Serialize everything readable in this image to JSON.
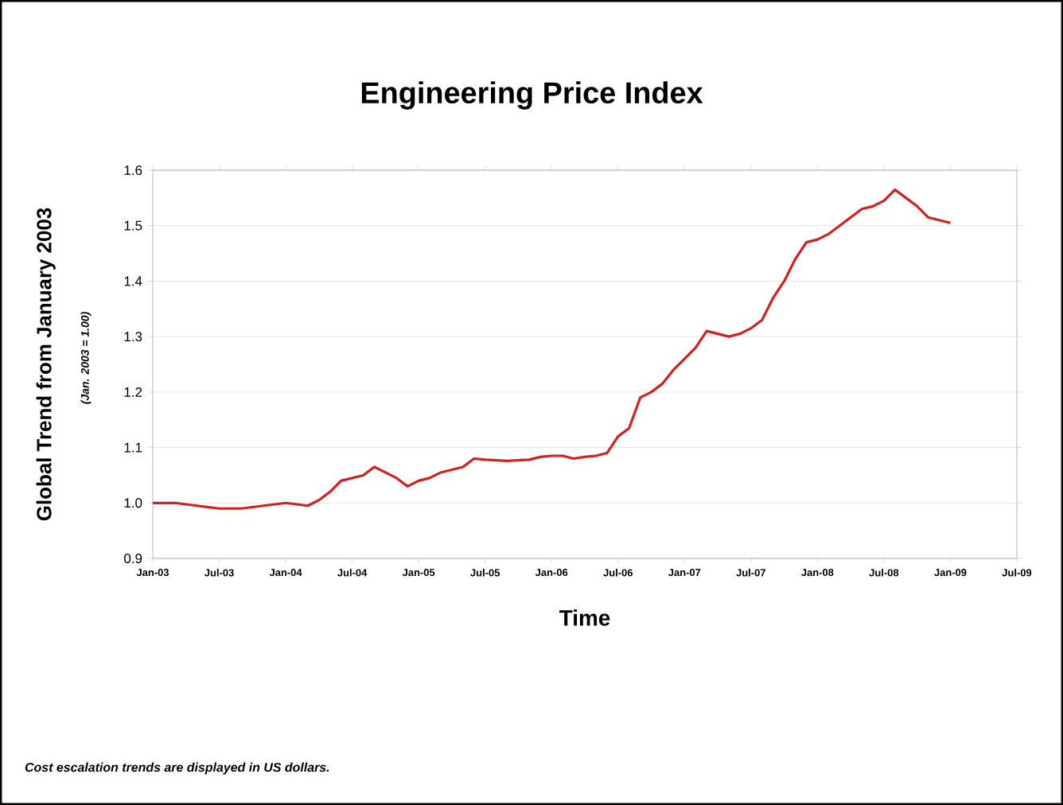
{
  "chart_data": {
    "type": "line",
    "title": "Engineering Price Index",
    "xlabel": "Time",
    "ylabel": "Global Trend from January 2003",
    "annotations": [
      "(Jan. 2003 = 1.00)",
      "Cost escalation trends are displayed in US dollars."
    ],
    "x": [
      "2003-01",
      "2003-03",
      "2003-05",
      "2003-07",
      "2003-09",
      "2003-11",
      "2004-01",
      "2004-03",
      "2004-04",
      "2004-05",
      "2004-06",
      "2004-07",
      "2004-08",
      "2004-09",
      "2004-10",
      "2004-11",
      "2004-12",
      "2005-01",
      "2005-02",
      "2005-03",
      "2005-04",
      "2005-05",
      "2005-06",
      "2005-07",
      "2005-09",
      "2005-11",
      "2005-12",
      "2006-01",
      "2006-02",
      "2006-03",
      "2006-04",
      "2006-05",
      "2006-06",
      "2006-07",
      "2006-08",
      "2006-09",
      "2006-10",
      "2006-11",
      "2006-12",
      "2007-01",
      "2007-02",
      "2007-03",
      "2007-04",
      "2007-05",
      "2007-06",
      "2007-07",
      "2007-08",
      "2007-09",
      "2007-10",
      "2007-11",
      "2007-12",
      "2008-01",
      "2008-02",
      "2008-03",
      "2008-04",
      "2008-05",
      "2008-06",
      "2008-07",
      "2008-08",
      "2008-09",
      "2008-10",
      "2008-11",
      "2008-12",
      "2009-01"
    ],
    "series": [
      {
        "color": "#d42020",
        "values": [
          1.0,
          1.0,
          0.995,
          0.99,
          0.99,
          0.995,
          1.0,
          0.995,
          1.005,
          1.02,
          1.04,
          1.045,
          1.05,
          1.065,
          1.055,
          1.045,
          1.03,
          1.04,
          1.045,
          1.055,
          1.06,
          1.065,
          1.08,
          1.078,
          1.076,
          1.078,
          1.083,
          1.085,
          1.085,
          1.08,
          1.083,
          1.085,
          1.09,
          1.12,
          1.135,
          1.19,
          1.2,
          1.215,
          1.24,
          1.26,
          1.28,
          1.31,
          1.305,
          1.3,
          1.305,
          1.315,
          1.33,
          1.37,
          1.4,
          1.44,
          1.47,
          1.475,
          1.485,
          1.5,
          1.515,
          1.53,
          1.535,
          1.545,
          1.565,
          1.55,
          1.535,
          1.515,
          1.51,
          1.505
        ]
      }
    ],
    "xlim": [
      "2003-01",
      "2009-07"
    ],
    "xticks": [
      {
        "value": "2003-01",
        "label": "Jan-03"
      },
      {
        "value": "2003-07",
        "label": "Jul-03"
      },
      {
        "value": "2004-01",
        "label": "Jan-04"
      },
      {
        "value": "2004-07",
        "label": "Jul-04"
      },
      {
        "value": "2005-01",
        "label": "Jan-05"
      },
      {
        "value": "2005-07",
        "label": "Jul-05"
      },
      {
        "value": "2006-01",
        "label": "Jan-06"
      },
      {
        "value": "2006-07",
        "label": "Jul-06"
      },
      {
        "value": "2007-01",
        "label": "Jan-07"
      },
      {
        "value": "2007-07",
        "label": "Jul-07"
      },
      {
        "value": "2008-01",
        "label": "Jan-08"
      },
      {
        "value": "2008-07",
        "label": "Jul-08"
      },
      {
        "value": "2009-01",
        "label": "Jan-09"
      },
      {
        "value": "2009-07",
        "label": "Jul-09"
      }
    ],
    "ylim": [
      0.9,
      1.6
    ],
    "yticks": [
      0.9,
      {
        "value": 1.0,
        "label": "1.0"
      },
      1.1,
      1.2,
      1.3,
      1.4,
      1.5,
      1.6
    ],
    "grid": "y",
    "marker": "none",
    "line_style": "solid"
  }
}
